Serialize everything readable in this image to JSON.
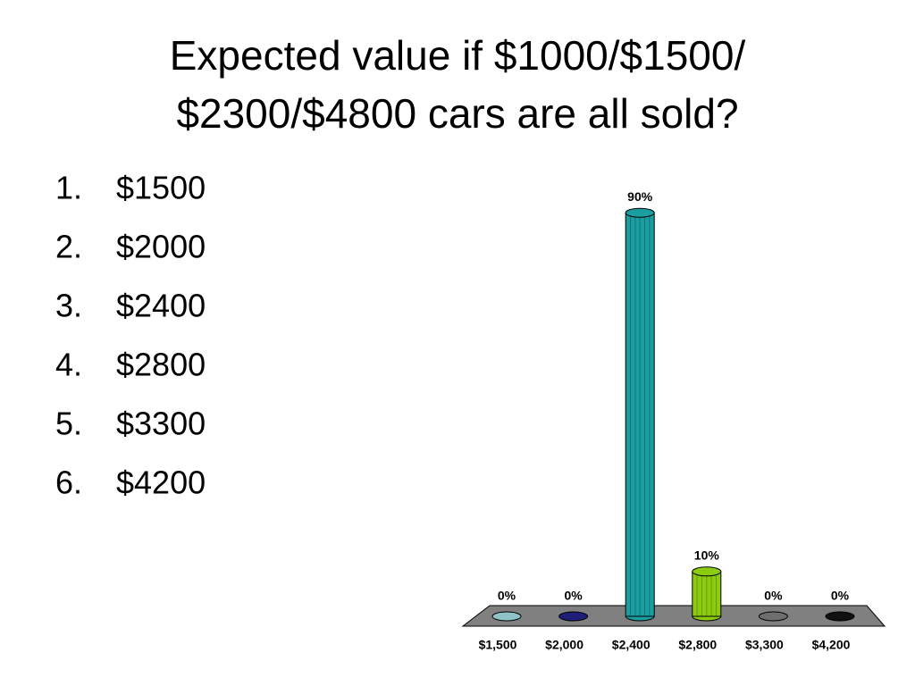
{
  "title": [
    "Expected value if $1000/$1500/",
    "$2300/$4800 cars are all sold?"
  ],
  "list": [
    {
      "number": "1.",
      "text": "$1500"
    },
    {
      "number": "2.",
      "text": "$2000"
    },
    {
      "number": "3.",
      "text": "$2400"
    },
    {
      "number": "4.",
      "text": "$2800"
    },
    {
      "number": "5.",
      "text": "$3300"
    },
    {
      "number": "6.",
      "text": "$4200"
    }
  ],
  "chart_data": {
    "type": "bar",
    "categories": [
      "$1,500",
      "$2,000",
      "$2,400",
      "$2,800",
      "$3,300",
      "$4,200"
    ],
    "values": [
      0,
      0,
      90,
      10,
      0,
      0
    ],
    "value_labels": [
      "0%",
      "0%",
      "90%",
      "10%",
      "0%",
      "0%"
    ],
    "colors": [
      "#8fc3c8",
      "#1f1f7a",
      "#1a9ea0",
      "#8ccc10",
      "#6e6e6e",
      "#111111"
    ]
  }
}
